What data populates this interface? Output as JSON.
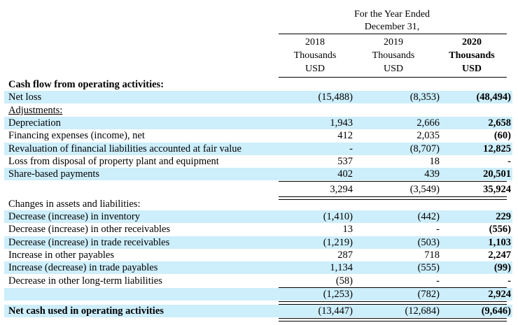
{
  "header": {
    "period_line1": "For the Year Ended",
    "period_line2": "December 31,",
    "columns": [
      {
        "year": "2018",
        "unit_line1": "Thousands",
        "unit_line2": "USD"
      },
      {
        "year": "2019",
        "unit_line1": "Thousands",
        "unit_line2": "USD"
      },
      {
        "year": "2020",
        "unit_line1": "Thousands",
        "unit_line2": "USD"
      }
    ]
  },
  "rows": [
    {
      "label": "Cash flow from operating activities:",
      "v2018": "",
      "v2019": "",
      "v2020": ""
    },
    {
      "label": "Net loss",
      "v2018": "(15,488)",
      "v2019": "(8,353)",
      "v2020": "(48,494)"
    },
    {
      "label": "Adjustments:",
      "v2018": "",
      "v2019": "",
      "v2020": ""
    },
    {
      "label": "Depreciation",
      "v2018": "1,943",
      "v2019": "2,666",
      "v2020": "2,658"
    },
    {
      "label": "Financing expenses (income), net",
      "v2018": "412",
      "v2019": "2,035",
      "v2020": "(60)"
    },
    {
      "label": "Revaluation of financial liabilities accounted at fair value",
      "v2018": "-",
      "v2019": "(8,707)",
      "v2020": "12,825"
    },
    {
      "label": "Loss from disposal of property plant and equipment",
      "v2018": "537",
      "v2019": "18",
      "v2020": "-"
    },
    {
      "label": "Share-based payments",
      "v2018": "402",
      "v2019": "439",
      "v2020": "20,501"
    },
    {
      "label": "",
      "v2018": "3,294",
      "v2019": "(3,549)",
      "v2020": "35,924"
    },
    {
      "label": "Changes in assets and liabilities:",
      "v2018": "",
      "v2019": "",
      "v2020": ""
    },
    {
      "label": "Decrease (increase) in inventory",
      "v2018": "(1,410)",
      "v2019": "(442)",
      "v2020": "229"
    },
    {
      "label": "Decrease (increase) in other receivables",
      "v2018": "13",
      "v2019": "-",
      "v2020": "(556)"
    },
    {
      "label": "Decrease (increase) in trade receivables",
      "v2018": "(1,219)",
      "v2019": "(503)",
      "v2020": "1,103"
    },
    {
      "label": "Increase in other payables",
      "v2018": "287",
      "v2019": "718",
      "v2020": "2,247"
    },
    {
      "label": "Increase (decrease) in trade payables",
      "v2018": "1,134",
      "v2019": "(555)",
      "v2020": "(99)"
    },
    {
      "label": "Decrease in other long-term liabilities",
      "v2018": "(58)",
      "v2019": "-",
      "v2020": "-"
    },
    {
      "label": "",
      "v2018": "(1,253)",
      "v2019": "(782)",
      "v2020": "2,924"
    },
    {
      "label": "Net cash used in operating activities",
      "v2018": "(13,447)",
      "v2019": "(12,684)",
      "v2020": "(9,646)"
    }
  ]
}
